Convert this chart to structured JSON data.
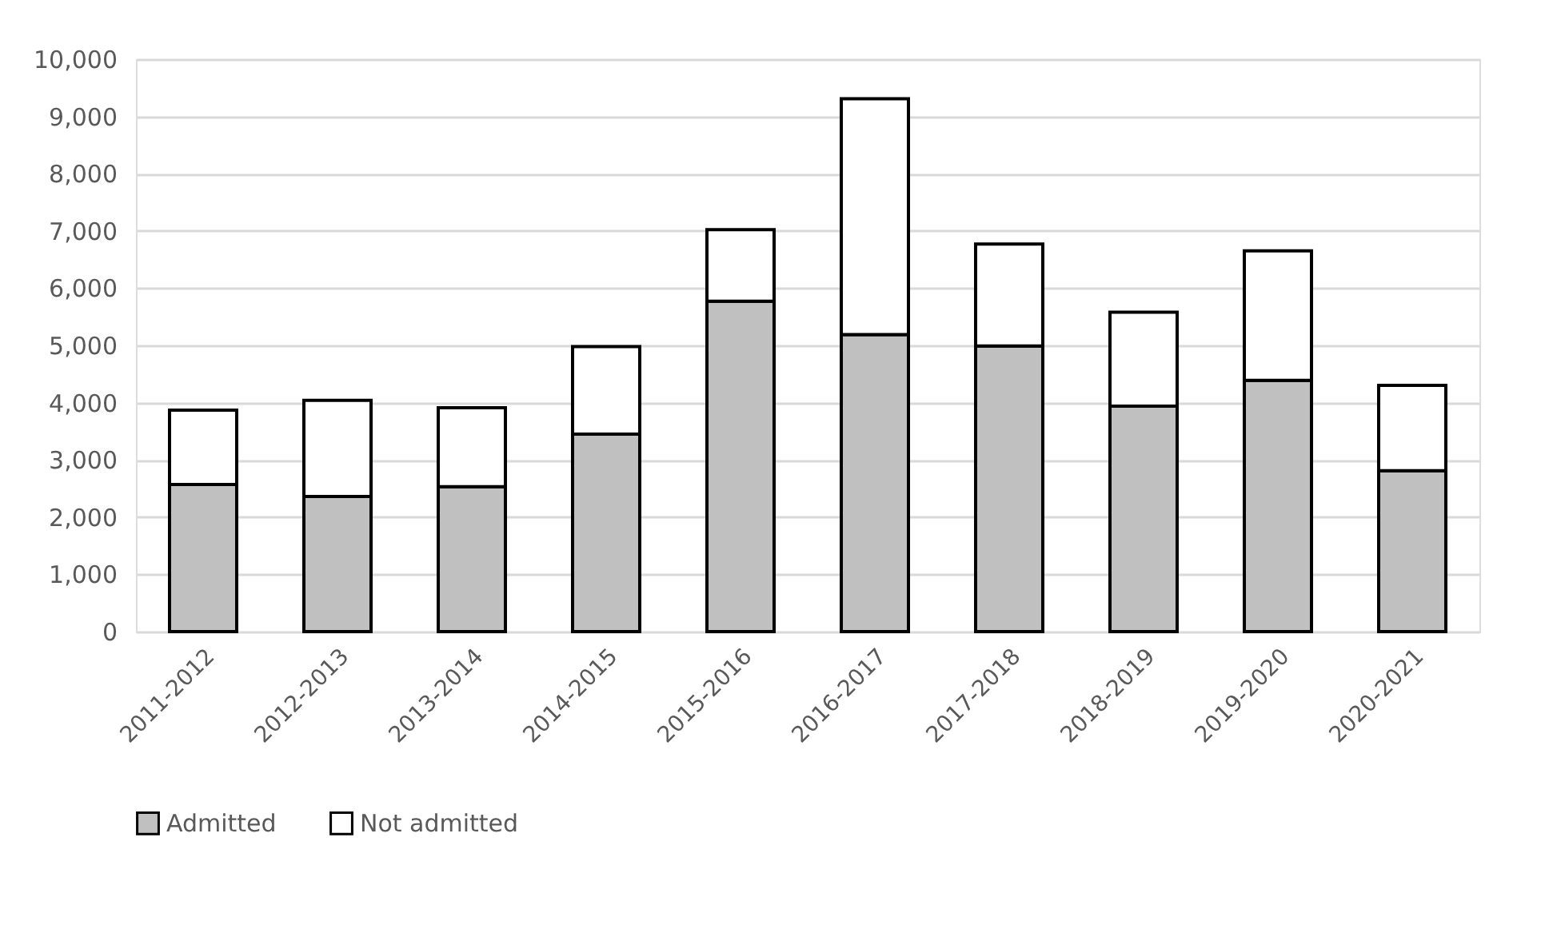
{
  "chart_data": {
    "type": "bar",
    "stacked": true,
    "categories": [
      "2011-2012",
      "2012-2013",
      "2013-2014",
      "2014-2015",
      "2015-2016",
      "2016-2017",
      "2017-2018",
      "2018-2019",
      "2019-2020",
      "2020-2021"
    ],
    "series": [
      {
        "name": "Admitted",
        "color": "#c0c0c0",
        "values": [
          2570,
          2360,
          2530,
          3450,
          5770,
          5190,
          4990,
          3940,
          4390,
          2810
        ]
      },
      {
        "name": "Not admitted",
        "color": "#ffffff",
        "values": [
          1300,
          1680,
          1380,
          1530,
          1250,
          4120,
          1780,
          1640,
          2260,
          1490
        ]
      }
    ],
    "ylim": [
      0,
      10000
    ],
    "yticks": [
      0,
      {
        "value": 1000,
        "label": "1,000"
      },
      {
        "value": 2000,
        "label": "2,000"
      },
      {
        "value": 3000,
        "label": "3,000"
      },
      {
        "value": 4000,
        "label": "4,000"
      },
      {
        "value": 5000,
        "label": "5,000"
      },
      {
        "value": 6000,
        "label": "6,000"
      },
      {
        "value": 7000,
        "label": "7,000"
      },
      {
        "value": 8000,
        "label": "8,000"
      },
      {
        "value": 9000,
        "label": "9,000"
      },
      {
        "value": 10000,
        "label": "10,000"
      }
    ],
    "grid": "y",
    "legend": "bottom"
  }
}
